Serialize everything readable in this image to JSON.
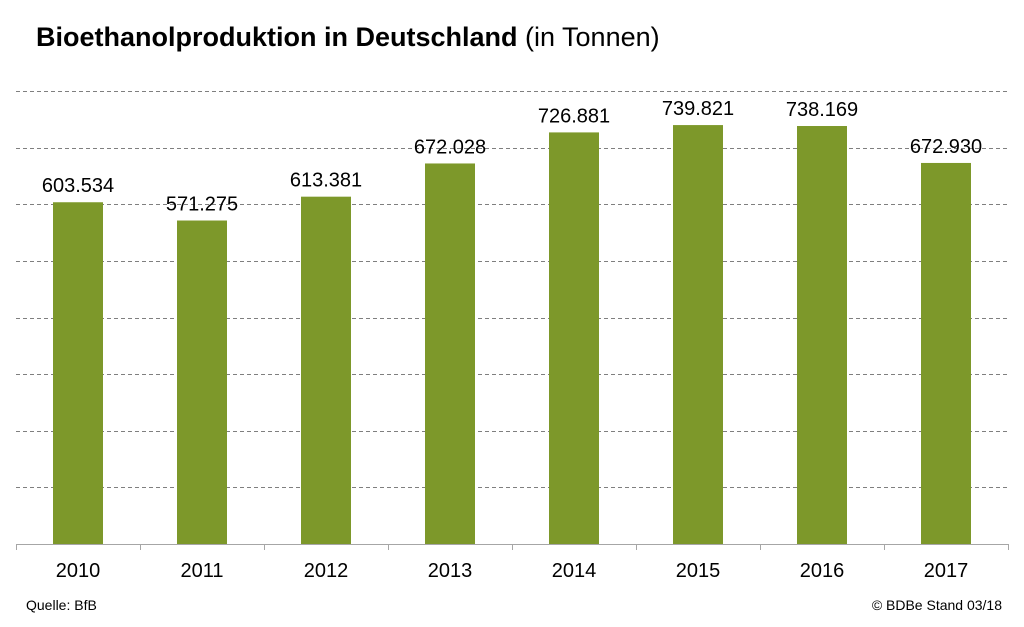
{
  "title_bold": "Bioethanolproduktion in Deutschland",
  "title_unit": "(in Tonnen)",
  "source": "Quelle:  BfB",
  "copyright": "© BDBe Stand 03/18",
  "colors": {
    "bar": "#7d982a",
    "grid": "#7f7f7f",
    "axis": "#a6a6a6"
  },
  "chart_data": {
    "type": "bar",
    "title": "Bioethanolproduktion in Deutschland (in Tonnen)",
    "categories": [
      "2010",
      "2011",
      "2012",
      "2013",
      "2014",
      "2015",
      "2016",
      "2017"
    ],
    "values": [
      603534,
      571275,
      613381,
      672028,
      726881,
      739821,
      738169,
      672930
    ],
    "value_labels": [
      "603.534",
      "571.275",
      "613.381",
      "672.028",
      "726.881",
      "739.821",
      "738.169",
      "672.930"
    ],
    "ylim": [
      0,
      800000
    ],
    "ytick_step": 100000,
    "grid": true,
    "grid_style": "dashed",
    "show_y_tick_labels": false,
    "legend": "none"
  }
}
